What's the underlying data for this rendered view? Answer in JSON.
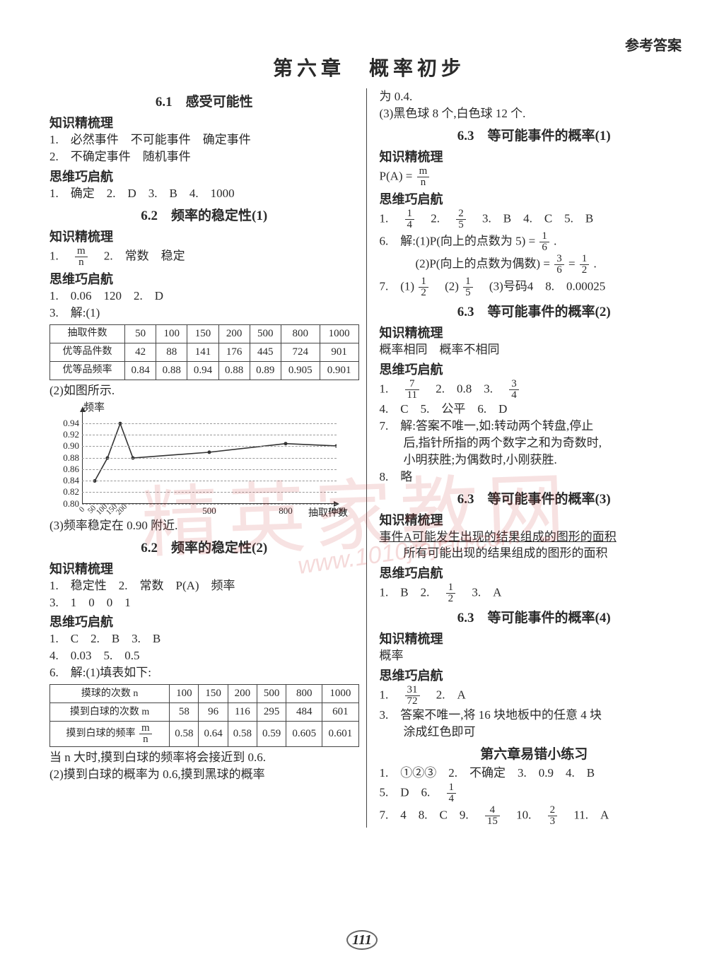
{
  "header_right": "参考答案",
  "chapter": "第六章　概率初步",
  "left": {
    "s61_title": "6.1　感受可能性",
    "zsjsl": "知识精梳理",
    "s61_z1": "1.　必然事件　不可能事件　确定事件",
    "s61_z2": "2.　不确定事件　随机事件",
    "swqh": "思维巧启航",
    "s61_a": "1.　确定　2.　D　3.　B　4.　1000",
    "s62a_title": "6.2　频率的稳定性(1)",
    "s62a_z1_prefix": "1.　",
    "frac_m": "m",
    "frac_n": "n",
    "s62a_z1_suffix": "　2.　常数　稳定",
    "s62a_a1": "1.　0.06　120　2.　D",
    "s62a_a2": "3.　解:(1)",
    "table1_head": [
      "抽取件数",
      "50",
      "100",
      "150",
      "200",
      "500",
      "800",
      "1000"
    ],
    "table1_r2": [
      "优等品件数",
      "42",
      "88",
      "141",
      "176",
      "445",
      "724",
      "901"
    ],
    "table1_r3": [
      "优等品频率",
      "0.84",
      "0.88",
      "0.94",
      "0.88",
      "0.89",
      "0.905",
      "0.901"
    ],
    "s62a_p2": "(2)如图所示.",
    "chart": {
      "ylabel": "频率",
      "xlabel": "抽取件数",
      "y_ticks": [
        0.8,
        0.82,
        0.84,
        0.86,
        0.88,
        0.9,
        0.92,
        0.94
      ],
      "x_ticks_small": [
        "0",
        "50",
        "100",
        "150",
        "200"
      ],
      "x_ticks": [
        500,
        800,
        1000
      ],
      "points_x": [
        50,
        100,
        150,
        200,
        500,
        800,
        1000
      ],
      "points_y": [
        0.84,
        0.88,
        0.94,
        0.88,
        0.89,
        0.905,
        0.901
      ],
      "xlim": [
        0,
        1000
      ],
      "ylim": [
        0.8,
        0.96
      ],
      "line_color": "#333",
      "grid_color": "#999"
    },
    "s62a_p3": "(3)频率稳定在 0.90 附近.",
    "s62b_title": "6.2　频率的稳定性(2)",
    "s62b_z1": "1.　稳定性　2.　常数　P(A)　频率",
    "s62b_z2": "3.　1　0　0　1",
    "s62b_a1": "1.　C　2.　B　3.　B",
    "s62b_a2": "4.　0.03　5.　0.5",
    "s62b_a3": "6.　解:(1)填表如下:",
    "table2_head": [
      "摸球的次数 n",
      "100",
      "150",
      "200",
      "500",
      "800",
      "1000"
    ],
    "table2_r2": [
      "摸到白球的次数 m",
      "58",
      "96",
      "116",
      "295",
      "484",
      "601"
    ],
    "table2_r3_label": "摸到白球的频率",
    "table2_r3": [
      "0.58",
      "0.64",
      "0.58",
      "0.59",
      "0.605",
      "0.601"
    ],
    "s62b_p1": "当 n 大时,摸到白球的频率将会接近到 0.6.",
    "s62b_p2": "(2)摸到白球的概率为 0.6,摸到黑球的概率"
  },
  "right": {
    "r_top1": "为 0.4.",
    "r_top2": "(3)黑色球 8 个,白色球 12 个.",
    "s63a_title": "6.3　等可能事件的概率(1)",
    "zsjsl": "知识精梳理",
    "r_pa": "P(A) = ",
    "swqh": "思维巧启航",
    "r_a1_prefix": "1.　",
    "f14n": "1",
    "f14d": "4",
    "r_a1_mid": "　2.　",
    "f25n": "2",
    "f25d": "5",
    "r_a1_suf": "　3.　B　4.　C　5.　B",
    "r_a2_prefix": "6.　解:(1)P(向上的点数为 5) = ",
    "f16n": "1",
    "f16d": "6",
    "r_a2_suf": ".",
    "r_a3_prefix": "　　　(2)P(向上的点数为偶数) = ",
    "f36n": "3",
    "f36d": "6",
    "eq": " = ",
    "f12n": "1",
    "f12d": "2",
    "r_a3_suf": ".",
    "r_a4_prefix": "7.　(1)",
    "r_a4_mid": "　(2) ",
    "f15n": "1",
    "f15d": "5",
    "r_a4_suf": "　(3)号码4　8.　0.00025",
    "s63b_title": "6.3　等可能事件的概率(2)",
    "r_b_z": "概率相同　概率不相同",
    "r_b1_prefix": "1.　",
    "f711n": "7",
    "f711d": "11",
    "r_b1_mid": "　2.　0.8　3.　",
    "f34n": "3",
    "f34d": "4",
    "r_b2": "4.　C　5.　公平　6.　D",
    "r_b3a": "7.　解:答案不唯一,如:转动两个转盘,停止",
    "r_b3b": "　　后,指针所指的两个数字之和为奇数时,",
    "r_b3c": "　　小明获胜;为偶数时,小刚获胜.",
    "r_b4": "8.　略",
    "s63c_title": "6.3　等可能事件的概率(3)",
    "r_c_z1": "事件A可能发生出现的结果组成的图形的面积",
    "r_c_z2": "　　所有可能出现的结果组成的图形的面积",
    "r_c1_prefix": "1.　B　2.　",
    "r_c1_suf": "　3.　A",
    "s63d_title": "6.3　等可能事件的概率(4)",
    "r_d_z": "概率",
    "r_d1_prefix": "1.　",
    "f3172n": "31",
    "f3172d": "72",
    "r_d1_suf": "　2.　A",
    "r_d2a": "3.　答案不唯一,将 16 块地板中的任意 4 块",
    "r_d2b": "　　涂成红色即可",
    "err_title": "第六章易错小练习",
    "e1": "1.　①②③　2.　不确定　3.　0.9　4.　B",
    "e2_prefix": "5.　D　6.　",
    "e3_prefix": "7.　4　8.　C　9.　",
    "f415n": "4",
    "f415d": "15",
    "e3_mid": "　10.　",
    "f23n": "2",
    "f23d": "3",
    "e3_suf": "　11.　A"
  },
  "page_num": "111",
  "watermark": "精英家教网",
  "watermark2": "www.1010jiajiao.com"
}
